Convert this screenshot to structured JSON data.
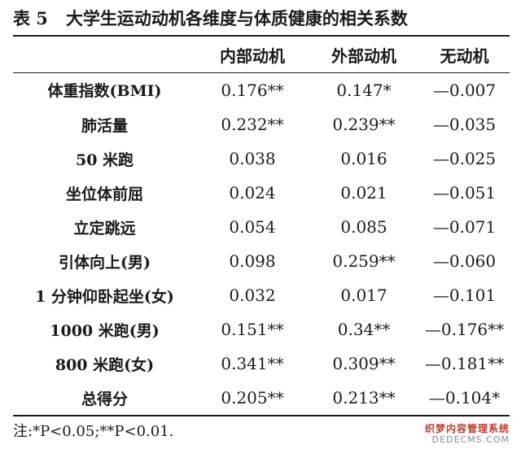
{
  "caption": {
    "number": "表 5",
    "text": "大学生运动动机各维度与体质健康的相关系数"
  },
  "table": {
    "headers": [
      "",
      "内部动机",
      "外部动机",
      "无动机"
    ],
    "rows": [
      [
        "体重指数(BMI)",
        "0.176**",
        "0.147*",
        "—0.007"
      ],
      [
        "肺活量",
        "0.232**",
        "0.239**",
        "—0.035"
      ],
      [
        "50 米跑",
        "0.038",
        "0.016",
        "—0.025"
      ],
      [
        "坐位体前屈",
        "0.024",
        "0.021",
        "—0.051"
      ],
      [
        "立定跳远",
        "0.054",
        "0.085",
        "—0.071"
      ],
      [
        "引体向上(男)",
        "0.098",
        "0.259**",
        "—0.060"
      ],
      [
        "1 分钟仰卧起坐(女)",
        "0.032",
        "0.017",
        "—0.101"
      ],
      [
        "1000 米跑(男)",
        "0.151**",
        "0.34**",
        "—0.176**"
      ],
      [
        "800 米跑(女)",
        "0.341**",
        "0.309**",
        "—0.181**"
      ],
      [
        "总得分",
        "0.205**",
        "0.213**",
        "—0.104*"
      ]
    ]
  },
  "note": "注:*P<0.05;**P<0.01.",
  "watermark": {
    "line1": "织梦内容管理系统",
    "line2": "DEDECMS.COM"
  }
}
